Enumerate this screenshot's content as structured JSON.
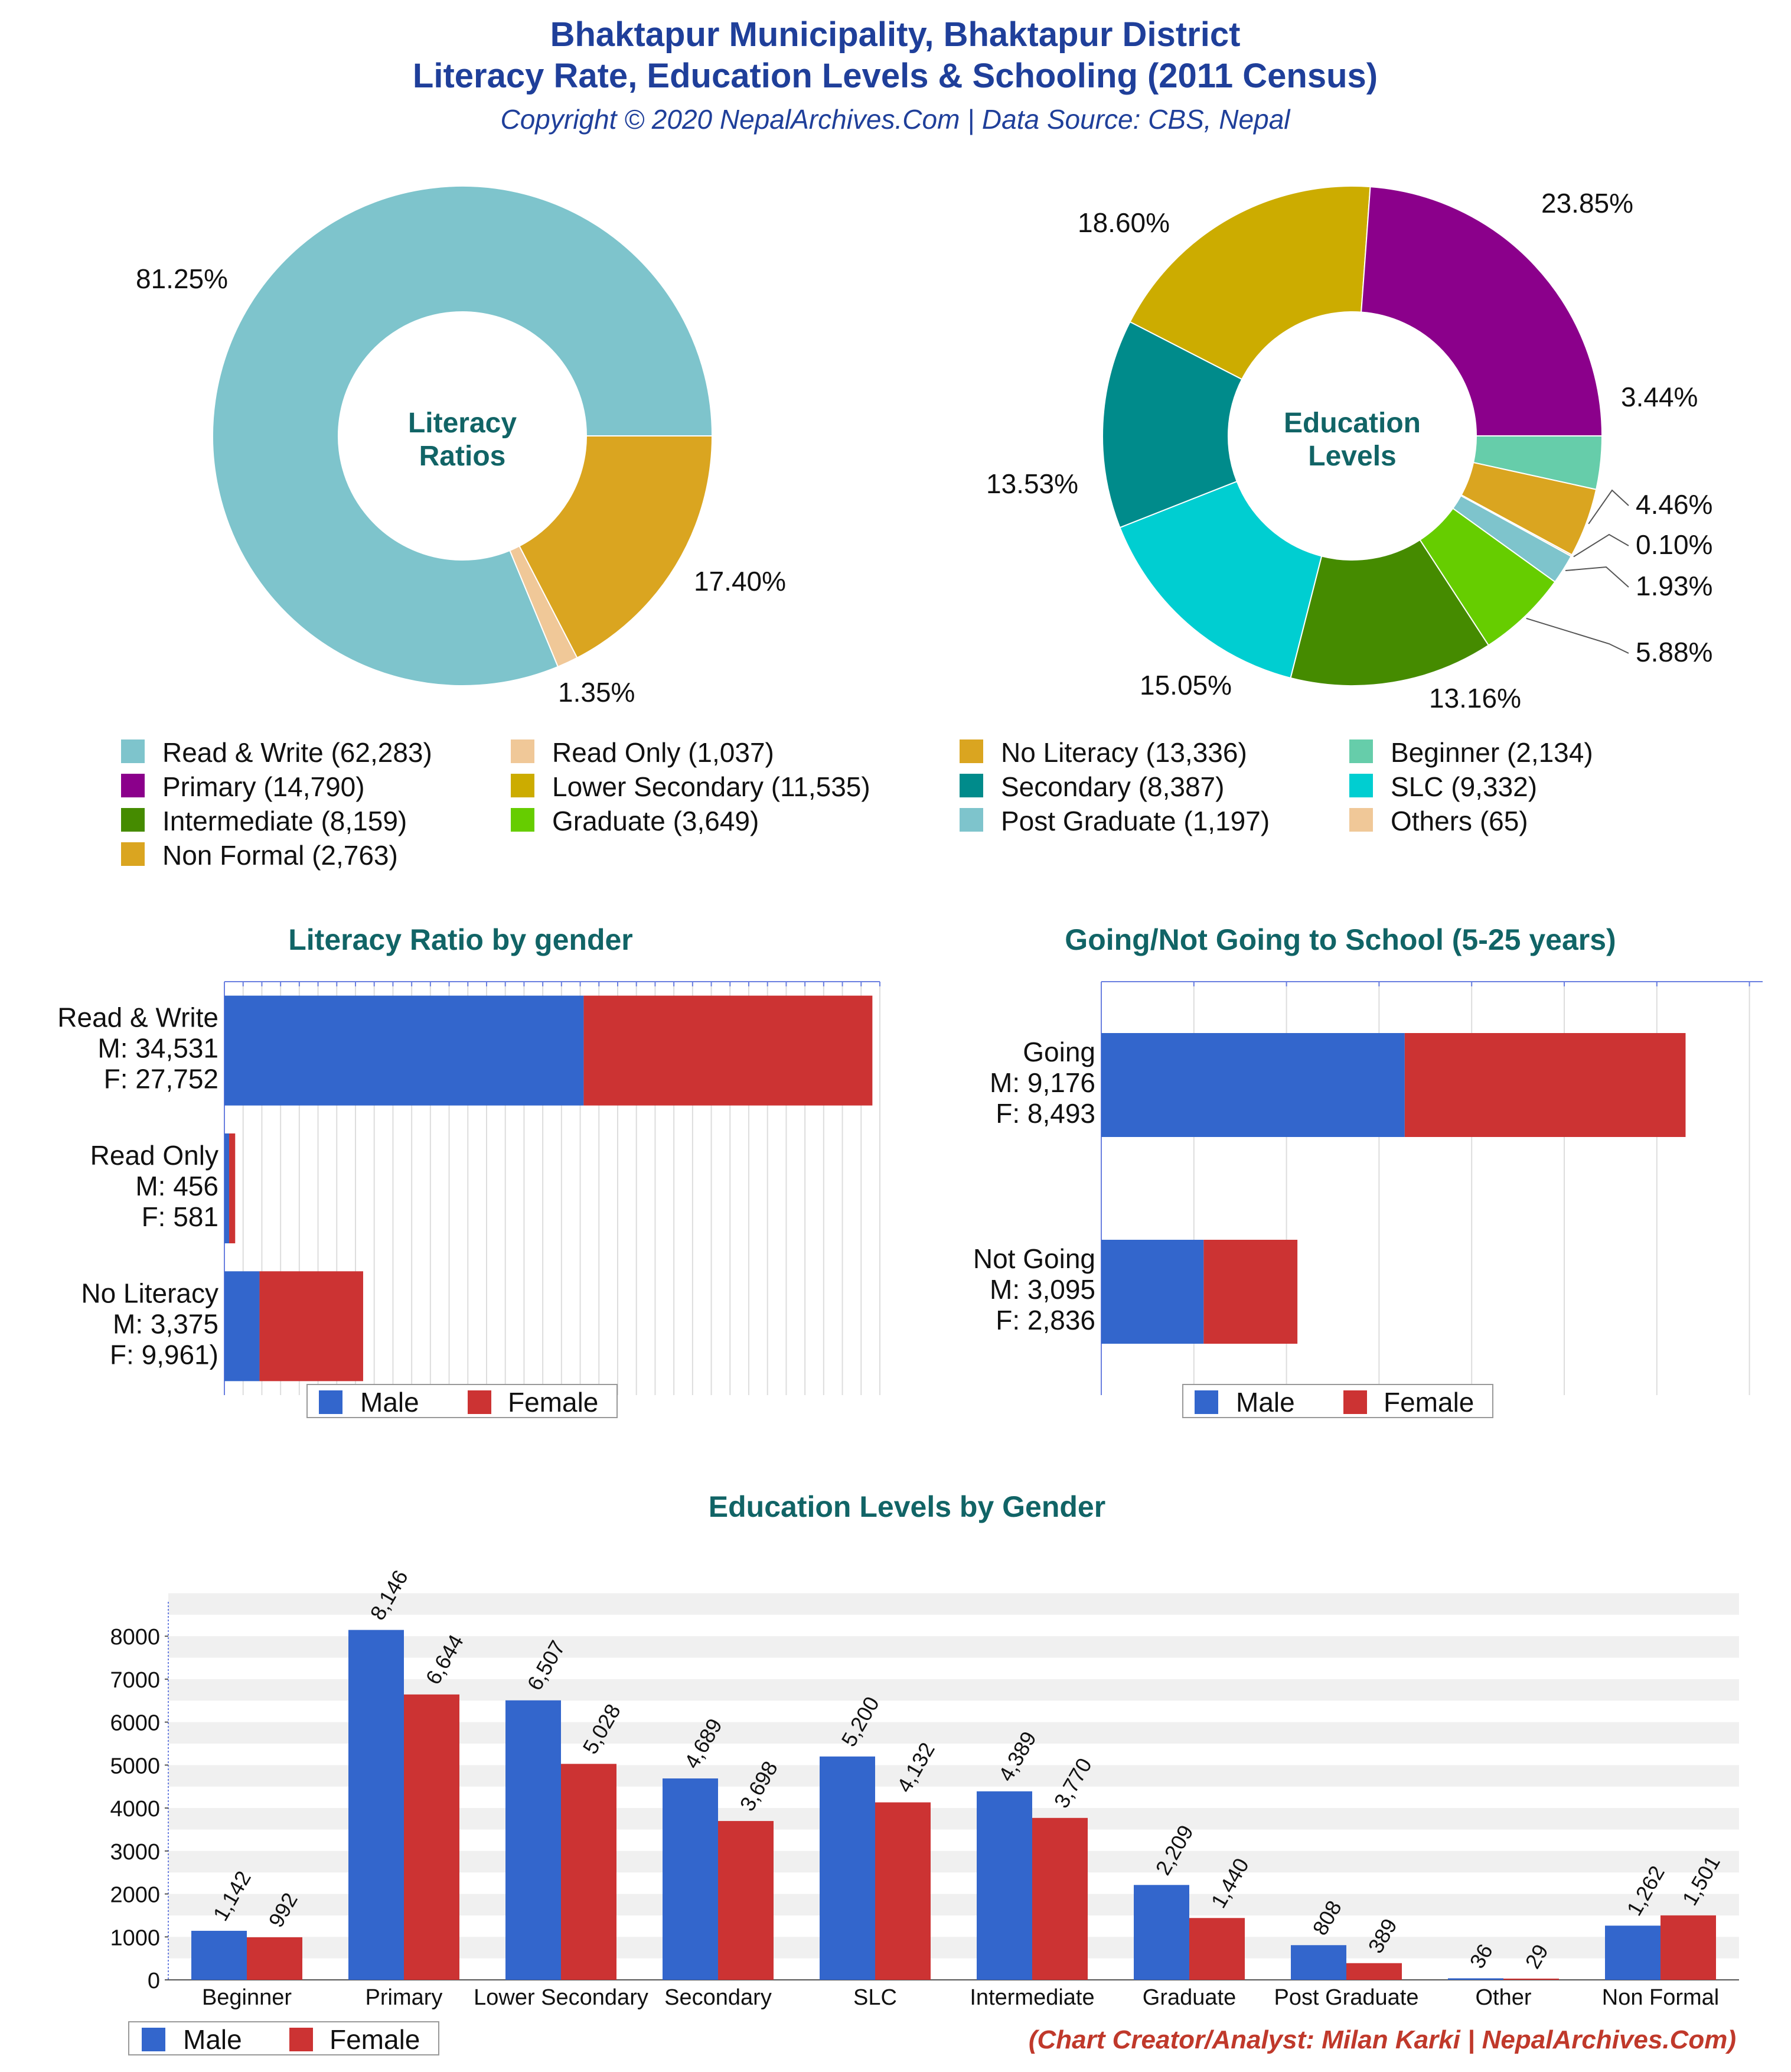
{
  "header": {
    "title_line1": "Bhaktapur Municipality, Bhaktapur District",
    "title_line2": "Literacy Rate, Education Levels & Schooling (2011 Census)",
    "subtitle": "Copyright © 2020 NepalArchives.Com | Data Source: CBS, Nepal"
  },
  "footer": {
    "credit": "(Chart Creator/Analyst: Milan Karki | NepalArchives.Com)"
  },
  "colors": {
    "title": "#1f3f9a",
    "section_title": "#116466",
    "male": "#3366cc",
    "female": "#cc3333",
    "credit": "#c0392b"
  },
  "legend": [
    {
      "label": "Read & Write (62,283)",
      "color": "#7ec4cc"
    },
    {
      "label": "Read Only (1,037)",
      "color": "#f0c898"
    },
    {
      "label": "No Literacy (13,336)",
      "color": "#daa520"
    },
    {
      "label": "Beginner (2,134)",
      "color": "#66cdaa"
    },
    {
      "label": "Primary (14,790)",
      "color": "#8b008b"
    },
    {
      "label": "Lower Secondary (11,535)",
      "color": "#ccac00"
    },
    {
      "label": "Secondary (8,387)",
      "color": "#008b8b"
    },
    {
      "label": "SLC (9,332)",
      "color": "#00ced1"
    },
    {
      "label": "Intermediate (8,159)",
      "color": "#458b00"
    },
    {
      "label": "Graduate (3,649)",
      "color": "#66cd00"
    },
    {
      "label": "Post Graduate (1,197)",
      "color": "#7ec4cc"
    },
    {
      "label": "Others (65)",
      "color": "#f0c898"
    },
    {
      "label": "Non Formal (2,763)",
      "color": "#daa520"
    }
  ],
  "chart_data": [
    {
      "type": "pie",
      "center_label": [
        "Literacy",
        "Ratios"
      ],
      "slices": [
        {
          "name": "Read & Write",
          "value": 62283,
          "label": "81.25%",
          "color": "#7ec4cc"
        },
        {
          "name": "Read Only",
          "value": 1037,
          "label": "1.35%",
          "color": "#f0c898"
        },
        {
          "name": "No Literacy",
          "value": 13336,
          "label": "17.40%",
          "color": "#daa520"
        }
      ]
    },
    {
      "type": "pie",
      "center_label": [
        "Education",
        "Levels"
      ],
      "slices": [
        {
          "name": "Beginner",
          "value": 2134,
          "label": "3.44%",
          "color": "#66cdaa"
        },
        {
          "name": "Non Formal",
          "value": 2763,
          "label": "4.46%",
          "color": "#daa520"
        },
        {
          "name": "Others",
          "value": 65,
          "label": "0.10%",
          "color": "#f0c898"
        },
        {
          "name": "Post Graduate",
          "value": 1197,
          "label": "1.93%",
          "color": "#7ec4cc"
        },
        {
          "name": "Graduate",
          "value": 3649,
          "label": "5.88%",
          "color": "#66cd00"
        },
        {
          "name": "Intermediate",
          "value": 8159,
          "label": "13.16%",
          "color": "#458b00"
        },
        {
          "name": "SLC",
          "value": 9332,
          "label": "15.05%",
          "color": "#00ced1"
        },
        {
          "name": "Secondary",
          "value": 8387,
          "label": "13.53%",
          "color": "#008b8b"
        },
        {
          "name": "Lower Secondary",
          "value": 11535,
          "label": "18.60%",
          "color": "#ccac00"
        },
        {
          "name": "Primary",
          "value": 14790,
          "label": "23.85%",
          "color": "#8b008b"
        }
      ]
    },
    {
      "type": "bar",
      "orientation": "horizontal-stacked",
      "title": "Literacy Ratio by gender",
      "categories": [
        [
          "Read & Write",
          "M: 34,531",
          "F: 27,752"
        ],
        [
          "Read Only",
          "M: 456",
          "F: 581"
        ],
        [
          "No Literacy",
          "M: 3,375",
          "F: 9,961)"
        ]
      ],
      "series": [
        {
          "name": "Male",
          "values": [
            34531,
            456,
            3375
          ]
        },
        {
          "name": "Female",
          "values": [
            27752,
            581,
            9961
          ]
        }
      ],
      "xlim": [
        0,
        63000
      ]
    },
    {
      "type": "bar",
      "orientation": "horizontal-stacked",
      "title": "Going/Not Going to School (5-25 years)",
      "categories": [
        [
          "Going",
          "M: 9,176",
          "F: 8,493"
        ],
        [
          "Not Going",
          "M: 3,095",
          "F: 2,836"
        ]
      ],
      "series": [
        {
          "name": "Male",
          "values": [
            9176,
            3095
          ]
        },
        {
          "name": "Female",
          "values": [
            8493,
            2836
          ]
        }
      ],
      "xlim": [
        0,
        20000
      ]
    },
    {
      "type": "bar",
      "title": "Education Levels by Gender",
      "categories": [
        "Beginner",
        "Primary",
        "Lower Secondary",
        "Secondary",
        "SLC",
        "Intermediate",
        "Graduate",
        "Post Graduate",
        "Other",
        "Non Formal"
      ],
      "series": [
        {
          "name": "Male",
          "values": [
            1142,
            8146,
            6507,
            4689,
            5200,
            4389,
            2209,
            808,
            36,
            1262
          ],
          "labels": [
            "1,142",
            "8,146",
            "6,507",
            "4,689",
            "5,200",
            "4,389",
            "2,209",
            "808",
            "36",
            "1,262"
          ]
        },
        {
          "name": "Female",
          "values": [
            992,
            6644,
            5028,
            3698,
            4132,
            3770,
            1440,
            389,
            29,
            1501
          ],
          "labels": [
            "992",
            "6,644",
            "5,028",
            "3,698",
            "4,132",
            "3,770",
            "1,440",
            "389",
            "29",
            "1,501"
          ]
        }
      ],
      "yticks": [
        "0",
        "1000",
        "2000",
        "3000",
        "4000",
        "5000",
        "6000",
        "7000",
        "8000"
      ],
      "ylim": [
        0,
        8800
      ]
    }
  ]
}
